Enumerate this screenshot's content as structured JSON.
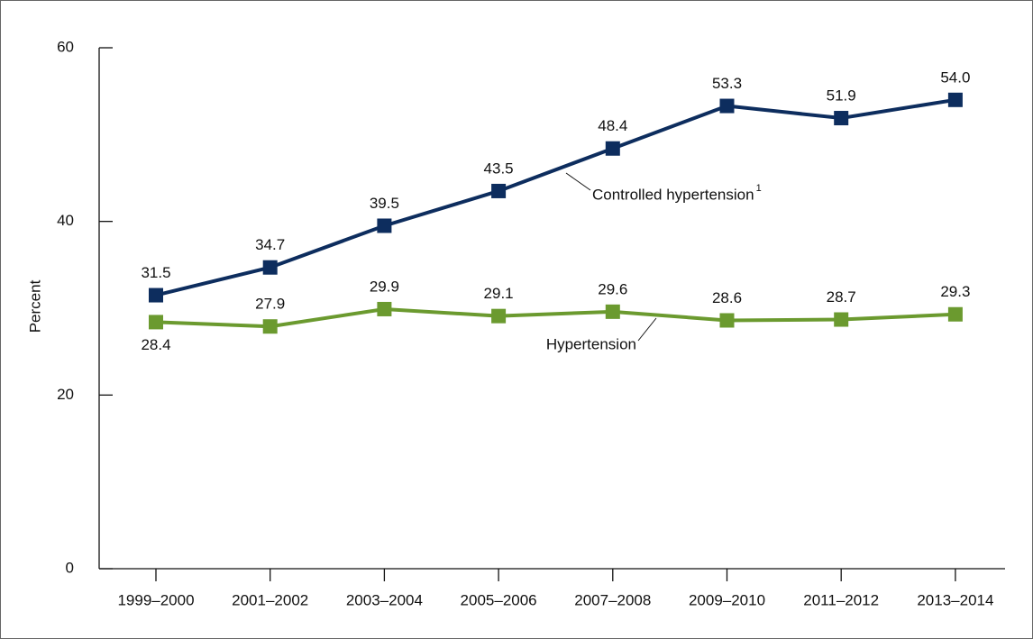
{
  "chart_data": {
    "type": "line",
    "y_label": "Percent",
    "categories": [
      "1999–2000",
      "2001–2002",
      "2003–2004",
      "2005–2006",
      "2007–2008",
      "2009–2010",
      "2011–2012",
      "2013–2014"
    ],
    "series": [
      {
        "name": "Controlled hypertension",
        "name_note": "1",
        "color": "#0d2d5e",
        "values": [
          31.5,
          34.7,
          39.5,
          43.5,
          48.4,
          53.3,
          51.9,
          54
        ],
        "value_labels": [
          "31.5",
          "34.7",
          "39.5",
          "43.5",
          "48.4",
          "53.3",
          "51.9",
          "54.0"
        ]
      },
      {
        "name": "Hypertension",
        "color": "#6b9a2f",
        "values": [
          28.4,
          27.9,
          29.9,
          29.1,
          29.6,
          28.6,
          28.7,
          29.3
        ],
        "value_labels": [
          "28.4",
          "27.9",
          "29.9",
          "29.1",
          "29.6",
          "28.6",
          "28.7",
          "29.3"
        ]
      }
    ],
    "ylim": [
      0,
      60
    ],
    "yticks": [
      0,
      20,
      40,
      60
    ]
  }
}
